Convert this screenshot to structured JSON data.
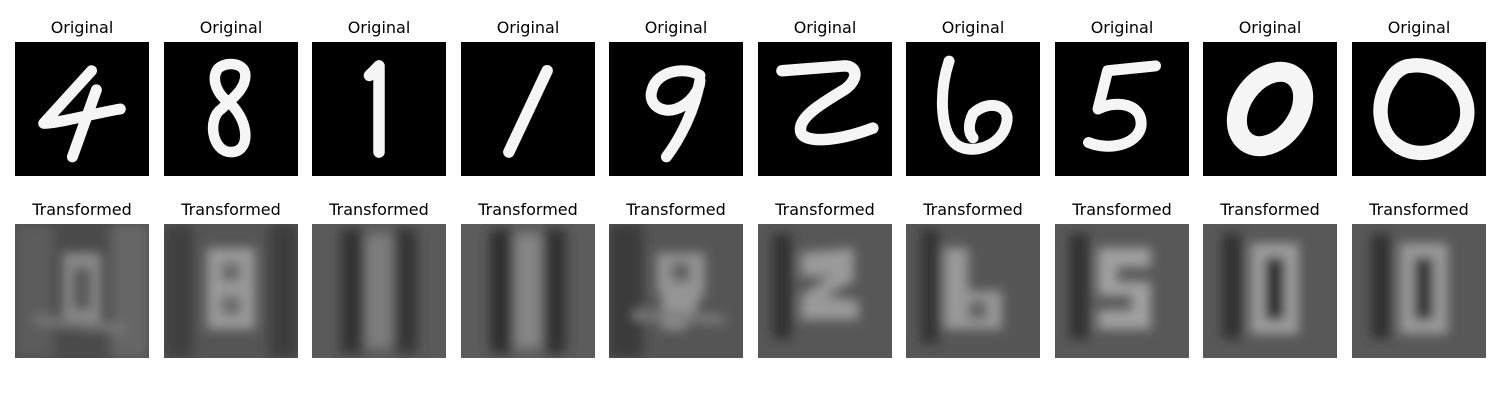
{
  "figure": {
    "rows": [
      {
        "row_title": "Original",
        "style": "original",
        "digits": [
          "4",
          "8",
          "1",
          "1",
          "9",
          "2",
          "6",
          "5",
          "0",
          "0"
        ]
      },
      {
        "row_title": "Transformed",
        "style": "transformed",
        "digits": [
          "0",
          "8",
          "1",
          "1",
          "9",
          "2",
          "6",
          "5",
          "0",
          "0"
        ]
      }
    ],
    "titles": {
      "original": "Original",
      "transformed": "Transformed"
    }
  }
}
